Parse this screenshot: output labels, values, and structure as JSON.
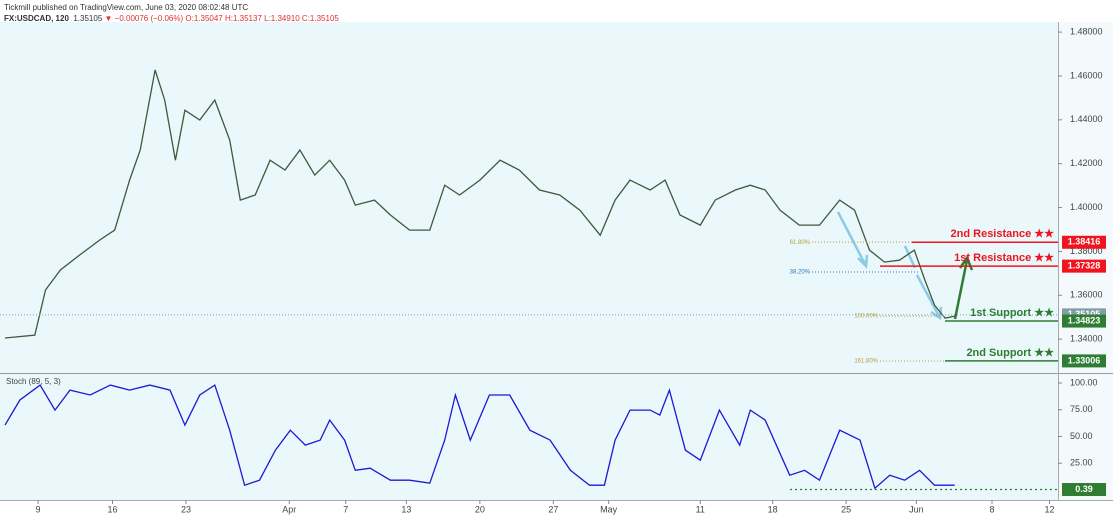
{
  "header": {
    "publisher": "Tickmill published on TradingView.com, June 03, 2020 08:02:48 UTC",
    "symbol": "FX:USDCAD, 120",
    "last": "1.35105",
    "change": "▼ −0.00076 (−0.06%)",
    "ohlc": "O:1.35047 H:1.35137 L:1.34910 C:1.35105"
  },
  "chart_data": [
    {
      "type": "line",
      "color": "#3d5a3a",
      "x": [
        5.9,
        8.7,
        9.7,
        11.1,
        12.9,
        14.8,
        16.2,
        17.6,
        18.6,
        20.0,
        20.9,
        21.9,
        22.8,
        24.2,
        25.6,
        27.0,
        28.0,
        29.4,
        30.8,
        32.2,
        33.6,
        35.0,
        36.4,
        37.8,
        38.8,
        40.6,
        42.1,
        43.9,
        45.8,
        47.2,
        48.6,
        50.5,
        52.4,
        54.2,
        56.1,
        58.0,
        59.9,
        61.8,
        63.2,
        64.6,
        66.5,
        67.9,
        69.3,
        71.2,
        72.6,
        74.5,
        75.9,
        77.3,
        78.7,
        80.5,
        82.4,
        84.3,
        85.7,
        87.1,
        88.5,
        89.9,
        91.3,
        92.3,
        93.2,
        94.2,
        95.1
      ],
      "values": [
        1.3405,
        1.3418,
        1.3624,
        1.3715,
        1.3783,
        1.3852,
        1.3897,
        1.4125,
        1.4262,
        1.4627,
        1.449,
        1.4216,
        1.4444,
        1.4399,
        1.449,
        1.4308,
        1.4034,
        1.4057,
        1.4216,
        1.4171,
        1.4262,
        1.4148,
        1.4216,
        1.4125,
        1.4011,
        1.4034,
        1.3966,
        1.3897,
        1.3897,
        1.4102,
        1.4057,
        1.4125,
        1.4216,
        1.4171,
        1.408,
        1.4057,
        1.3988,
        1.3874,
        1.4034,
        1.4125,
        1.408,
        1.4125,
        1.3966,
        1.392,
        1.4034,
        1.408,
        1.4102,
        1.408,
        1.3988,
        1.392,
        1.392,
        1.4034,
        1.3988,
        1.3806,
        1.3751,
        1.376,
        1.3806,
        1.3669,
        1.3555,
        1.3496,
        1.3505
      ],
      "xlim": [
        5.43,
        104.8
      ],
      "ylim": [
        1.325,
        1.4846
      ],
      "yticks": [
        {
          "value": 1.34,
          "label": "1.34000"
        },
        {
          "value": 1.36,
          "label": "1.36000"
        },
        {
          "value": 1.38,
          "label": "1.38000"
        },
        {
          "value": 1.4,
          "label": "1.40000"
        },
        {
          "value": 1.42,
          "label": "1.42000"
        },
        {
          "value": 1.44,
          "label": "1.44000"
        },
        {
          "value": 1.46,
          "label": "1.46000"
        },
        {
          "value": 1.48,
          "label": "1.48000"
        }
      ],
      "last_price": 1.35105,
      "last_color": "#7f9ea3",
      "levels": [
        {
          "label": "2nd Resistance ★★",
          "value": 1.38416,
          "color": "#f0141e"
        },
        {
          "label": "1st Resistance ★★",
          "value": 1.37328,
          "color": "#f0141e"
        },
        {
          "label": "1st Support ★★",
          "value": 1.34823,
          "color": "#2e7d32"
        },
        {
          "label": "2nd Support ★★",
          "value": 1.33006,
          "color": "#2e7d32"
        }
      ],
      "fibs": [
        {
          "label": "61.80%",
          "value": 1.3842,
          "color": "#b5a33a"
        },
        {
          "label": "38.20%",
          "value": 1.3706,
          "color": "#2a7ab8"
        },
        {
          "label": "100.00%",
          "value": 1.3505,
          "color": "#b5a33a"
        },
        {
          "label": "161.80%",
          "value": 1.33,
          "color": "#b5a33a"
        }
      ]
    },
    {
      "type": "line",
      "title": "Stoch (89, 5, 3)",
      "color": "#1a1ad6",
      "x": [
        5.9,
        7.3,
        9.2,
        10.6,
        12.0,
        13.9,
        15.8,
        17.6,
        19.5,
        21.4,
        22.8,
        24.2,
        25.6,
        27.0,
        28.4,
        29.8,
        31.3,
        32.7,
        34.1,
        35.5,
        36.4,
        37.8,
        38.8,
        40.2,
        42.1,
        43.9,
        45.8,
        47.2,
        48.2,
        49.6,
        51.4,
        53.3,
        55.2,
        57.1,
        59.0,
        60.8,
        62.2,
        63.2,
        64.6,
        66.5,
        67.4,
        68.3,
        69.8,
        71.2,
        73.0,
        74.9,
        75.9,
        77.3,
        79.6,
        81.0,
        82.4,
        84.3,
        86.2,
        87.6,
        89.0,
        90.4,
        91.8,
        93.2,
        95.1
      ],
      "values": [
        60.6,
        84.1,
        98.1,
        74.7,
        93.4,
        88.8,
        98.1,
        93.4,
        98.1,
        93.4,
        60.6,
        88.8,
        98.1,
        55.9,
        4.4,
        9.1,
        37.2,
        55.9,
        41.9,
        46.6,
        65.3,
        46.6,
        18.4,
        20.3,
        9.1,
        9.1,
        6.3,
        46.6,
        88.8,
        46.6,
        88.8,
        88.8,
        55.9,
        46.6,
        18.4,
        4.4,
        4.4,
        46.6,
        74.7,
        74.7,
        70.0,
        93.4,
        37.2,
        27.8,
        74.7,
        41.9,
        74.7,
        65.3,
        13.8,
        18.4,
        9.1,
        55.9,
        46.6,
        1.6,
        13.8,
        9.1,
        18.4,
        4.4,
        4.4
      ],
      "xlim": [
        5.43,
        104.8
      ],
      "ylim": [
        -9.4,
        107.5
      ],
      "yticks": [
        {
          "value": 25,
          "label": "25.00"
        },
        {
          "value": 50,
          "label": "50.00"
        },
        {
          "value": 75,
          "label": "75.00"
        },
        {
          "value": 100,
          "label": "100.00"
        }
      ],
      "last_value": 0.39,
      "last_color": "#2e7d32",
      "xticks": [
        {
          "value": 9.0,
          "label": "9"
        },
        {
          "value": 16.0,
          "label": "16"
        },
        {
          "value": 22.9,
          "label": "23"
        },
        {
          "value": 32.6,
          "label": "Apr"
        },
        {
          "value": 37.9,
          "label": "7"
        },
        {
          "value": 43.6,
          "label": "13"
        },
        {
          "value": 50.5,
          "label": "20"
        },
        {
          "value": 57.4,
          "label": "27"
        },
        {
          "value": 62.6,
          "label": "May"
        },
        {
          "value": 71.2,
          "label": "11"
        },
        {
          "value": 78.0,
          "label": "18"
        },
        {
          "value": 84.9,
          "label": "25"
        },
        {
          "value": 91.5,
          "label": "Jun"
        },
        {
          "value": 98.6,
          "label": "8"
        },
        {
          "value": 104.0,
          "label": "12"
        }
      ]
    }
  ]
}
